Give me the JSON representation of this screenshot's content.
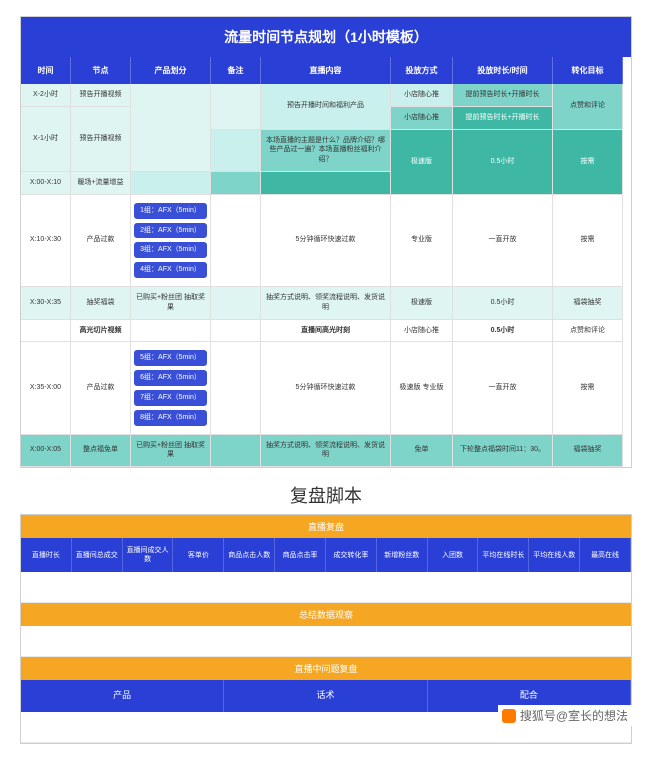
{
  "colors": {
    "hdr": "#2a3fd6",
    "bar_orange": "#f5a623",
    "bar_blue": "#2a3fd6"
  },
  "t1": {
    "title": "流量时间节点规划（1小时模板）",
    "headers": [
      "时间",
      "节点",
      "产品划分",
      "备注",
      "直播内容",
      "投放方式",
      "投放时长/时间",
      "转化目标"
    ],
    "rows": [
      {
        "cells": [
          {
            "v": "X-2小时",
            "cls": "teal-v"
          },
          {
            "v": "预告开播视频",
            "cls": "teal-v"
          },
          {
            "v": "",
            "cls": "teal-v",
            "rs": 3
          },
          {
            "v": "",
            "cls": "teal-v",
            "rs": 2
          },
          {
            "v": "预告开播时间和福利产品",
            "cls": "teal-l",
            "rs": 2
          },
          {
            "v": "小店随心推",
            "cls": "teal-l"
          },
          {
            "v": "提前预告时长+开播时长",
            "cls": "teal-m"
          },
          {
            "v": "点赞和评论",
            "cls": "teal-m",
            "rs": 2
          }
        ]
      },
      {
        "cells": [
          {
            "v": "X-1小时",
            "cls": "teal-v",
            "rs": 2
          },
          {
            "v": "预告开播视频",
            "cls": "teal-v",
            "rs": 2
          },
          {
            "v": "小店随心推",
            "cls": "teal-m"
          },
          {
            "v": "提前预告时长+开播时长",
            "cls": "teal-d"
          }
        ]
      },
      {
        "cells": [
          {
            "v": "",
            "cls": "teal-l"
          },
          {
            "v": "本场直播的主题是什么？品牌介绍？哪些产品过一遍？本场直播粉丝福利介绍？",
            "cls": "teal-m"
          },
          {
            "v": "极速版",
            "cls": "teal-d",
            "rs": 2
          },
          {
            "v": "0.5小时",
            "cls": "teal-d",
            "rs": 2
          },
          {
            "v": "按需",
            "cls": "teal-d",
            "rs": 2
          }
        ]
      },
      {
        "cells": [
          {
            "v": "X:00-X:10",
            "cls": "teal-v"
          },
          {
            "v": "暖场+流量增益",
            "cls": "teal-v"
          },
          {
            "v": "",
            "cls": "teal-l"
          },
          {
            "v": "",
            "cls": "teal-m"
          },
          {
            "v": "",
            "cls": "teal-d"
          }
        ]
      },
      {
        "cells": [
          {
            "v": "X:10-X:30",
            "cls": "wht"
          },
          {
            "v": "产品过款",
            "cls": "wht"
          },
          {
            "v": "",
            "cls": "wht",
            "pills": [
              "1组：AFX（5min）",
              "2组：AFX（5min）",
              "3组：AFX（5min）",
              "4组：AFX（5min）"
            ]
          },
          {
            "v": "",
            "cls": "wht"
          },
          {
            "v": "5分钟循环快速过款",
            "cls": "wht"
          },
          {
            "v": "专业版",
            "cls": "wht"
          },
          {
            "v": "一直开放",
            "cls": "wht"
          },
          {
            "v": "按需",
            "cls": "wht"
          }
        ]
      },
      {
        "cells": [
          {
            "v": "X:30-X:35",
            "cls": "teal-v"
          },
          {
            "v": "抽奖福袋",
            "cls": "teal-v"
          },
          {
            "v": "已购买+粉丝团 抽取奖果",
            "cls": "teal-v"
          },
          {
            "v": "",
            "cls": "teal-v"
          },
          {
            "v": "抽奖方式说明、领奖流程说明、发货说明",
            "cls": "teal-v"
          },
          {
            "v": "极速版",
            "cls": "teal-v"
          },
          {
            "v": "0.5小时",
            "cls": "teal-v"
          },
          {
            "v": "福袋抽奖",
            "cls": "teal-v"
          }
        ]
      },
      {
        "cells": [
          {
            "v": "",
            "cls": "wht"
          },
          {
            "v": "高光切片视频",
            "cls": "wht",
            "b": 1
          },
          {
            "v": "",
            "cls": "wht"
          },
          {
            "v": "",
            "cls": "wht"
          },
          {
            "v": "直播间高光时刻",
            "cls": "wht",
            "b": 1
          },
          {
            "v": "小店随心推",
            "cls": "wht"
          },
          {
            "v": "0.5小时",
            "cls": "wht",
            "b": 1
          },
          {
            "v": "点赞和评论",
            "cls": "wht"
          }
        ]
      },
      {
        "cells": [
          {
            "v": "X:35-X:00",
            "cls": "wht"
          },
          {
            "v": "产品过款",
            "cls": "wht"
          },
          {
            "v": "",
            "cls": "wht",
            "pills": [
              "5组：AFX（5min）",
              "6组：AFX（5min）",
              "7组：AFX（5min）",
              "8组：AFX（5min）"
            ]
          },
          {
            "v": "",
            "cls": "wht"
          },
          {
            "v": "5分钟循环快速过款",
            "cls": "wht"
          },
          {
            "v": "极速版\n\n专业版",
            "cls": "wht"
          },
          {
            "v": "一直开放",
            "cls": "wht"
          },
          {
            "v": "按需",
            "cls": "wht"
          }
        ]
      },
      {
        "cells": [
          {
            "v": "X:00-X:05",
            "cls": "teal-m"
          },
          {
            "v": "整点福免单",
            "cls": "teal-m"
          },
          {
            "v": "已购买+粉丝团 抽取奖果",
            "cls": "teal-m"
          },
          {
            "v": "",
            "cls": "teal-m"
          },
          {
            "v": "抽奖方式说明、领奖流程说明、发货说明",
            "cls": "teal-m"
          },
          {
            "v": "免单",
            "cls": "teal-m"
          },
          {
            "v": "下轮整点福袋时间11：30。",
            "cls": "teal-m"
          },
          {
            "v": "福袋抽奖",
            "cls": "teal-m"
          }
        ]
      }
    ]
  },
  "h2": "复盘脚本",
  "t2": {
    "sec1": {
      "title": "直播复盘",
      "color": "#f5a623",
      "cols": [
        "直播时长",
        "直播间总成交",
        "直播间成交人数",
        "客单价",
        "商品点击人数",
        "商品点击率",
        "成交转化率",
        "新增粉丝数",
        "入团数",
        "平均在线时长",
        "平均在线人数",
        "最高在线"
      ]
    },
    "sec2": {
      "title": "总结数据观察",
      "color": "#f5a623"
    },
    "sec3": {
      "title": "直播中问题复盘",
      "color": "#f5a623",
      "cols": [
        "产品",
        "话术",
        "配合"
      ]
    }
  },
  "wm": "搜狐号@室长的想法"
}
